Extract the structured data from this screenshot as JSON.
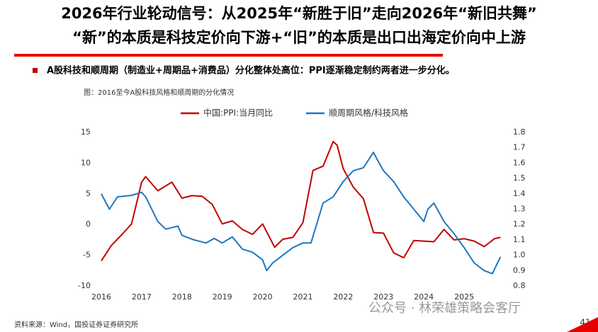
{
  "slide": {
    "title_lines": [
      "2026年行业轮动信号：从2025年“新胜于旧”走向2026年“新旧共舞”",
      "“新”的本质是科技定价向下游+“旧”的本质是出口出海定价向中上游"
    ],
    "bullet": "A股科技和顺周期（制造业+周期品+消费品）分化整体处高位：PPI逐渐稳定制约两者进一步分化。",
    "figure_caption": "图：2016至今A股科技风格和顺周期的分化情况",
    "source": "资料来源：Wind，国投证券证券研究所",
    "watermark": "公众号 · 林荣雄策略会客厅",
    "page_number": "41"
  },
  "chart_data": {
    "type": "line",
    "xlim": [
      2016,
      2026
    ],
    "xticks": [
      2016,
      2017,
      2018,
      2019,
      2020,
      2021,
      2022,
      2023,
      2024,
      2025
    ],
    "ylim": [
      -10,
      15
    ],
    "yticks": [
      -10,
      -5,
      0,
      5,
      10,
      15
    ],
    "y2lim": [
      0.8,
      1.8
    ],
    "y2ticks": [
      0.8,
      0.9,
      {
        "value": 1,
        "label": "1.0"
      },
      1.1,
      1.2,
      1.3,
      1.4,
      1.5,
      1.6,
      1.7,
      1.8
    ],
    "grid": false,
    "series": [
      {
        "name": "中国:PPI:当月同比",
        "color": "#c00000",
        "x": [
          2016.0,
          2016.25,
          2016.5,
          2016.75,
          2017.0,
          2017.1,
          2017.4,
          2017.6,
          2017.75,
          2018.0,
          2018.25,
          2018.5,
          2018.75,
          2019.0,
          2019.25,
          2019.5,
          2019.75,
          2020.0,
          2020.3,
          2020.5,
          2020.75,
          2021.0,
          2021.25,
          2021.5,
          2021.75,
          2021.85,
          2022.0,
          2022.25,
          2022.5,
          2022.75,
          2023.0,
          2023.25,
          2023.5,
          2023.75,
          2024.0,
          2024.25,
          2024.5,
          2024.75,
          2025.0,
          2025.25,
          2025.5,
          2025.75,
          2025.9
        ],
        "values": [
          -5.9,
          -3.4,
          -1.7,
          0.1,
          6.9,
          7.8,
          5.5,
          6.3,
          6.9,
          4.3,
          4.7,
          4.6,
          3.3,
          0.1,
          0.6,
          -0.8,
          -1.6,
          0.1,
          -3.7,
          -2.4,
          -2.1,
          0.3,
          8.8,
          9.5,
          13.5,
          12.9,
          9.1,
          6.1,
          4.2,
          -1.3,
          -1.4,
          -4.6,
          -5.4,
          -2.6,
          -2.7,
          -2.8,
          -0.8,
          -2.5,
          -2.3,
          -2.7,
          -3.6,
          -2.3,
          -2.1
        ]
      },
      {
        "name": "顺周期风格/科技风格",
        "color": "#1f77c0",
        "axis": "y2",
        "x": [
          2016.0,
          2016.2,
          2016.4,
          2016.75,
          2017.0,
          2017.1,
          2017.4,
          2017.6,
          2017.9,
          2018.0,
          2018.3,
          2018.6,
          2018.8,
          2019.0,
          2019.25,
          2019.5,
          2019.75,
          2020.0,
          2020.1,
          2020.25,
          2020.5,
          2020.75,
          2021.0,
          2021.2,
          2021.5,
          2021.75,
          2022.0,
          2022.25,
          2022.5,
          2022.75,
          2022.85,
          2023.0,
          2023.25,
          2023.5,
          2023.75,
          2024.0,
          2024.1,
          2024.25,
          2024.5,
          2024.75,
          2025.0,
          2025.25,
          2025.5,
          2025.7,
          2025.9
        ],
        "values": [
          1.4,
          1.3,
          1.38,
          1.39,
          1.41,
          1.38,
          1.22,
          1.17,
          1.19,
          1.13,
          1.1,
          1.08,
          1.11,
          1.08,
          1.12,
          1.04,
          1.02,
          0.97,
          0.9,
          0.95,
          1.0,
          1.05,
          1.08,
          1.08,
          1.34,
          1.38,
          1.48,
          1.55,
          1.57,
          1.67,
          1.62,
          1.55,
          1.48,
          1.38,
          1.3,
          1.22,
          1.3,
          1.34,
          1.22,
          1.14,
          1.05,
          0.95,
          0.9,
          0.88,
          0.99
        ]
      }
    ]
  }
}
